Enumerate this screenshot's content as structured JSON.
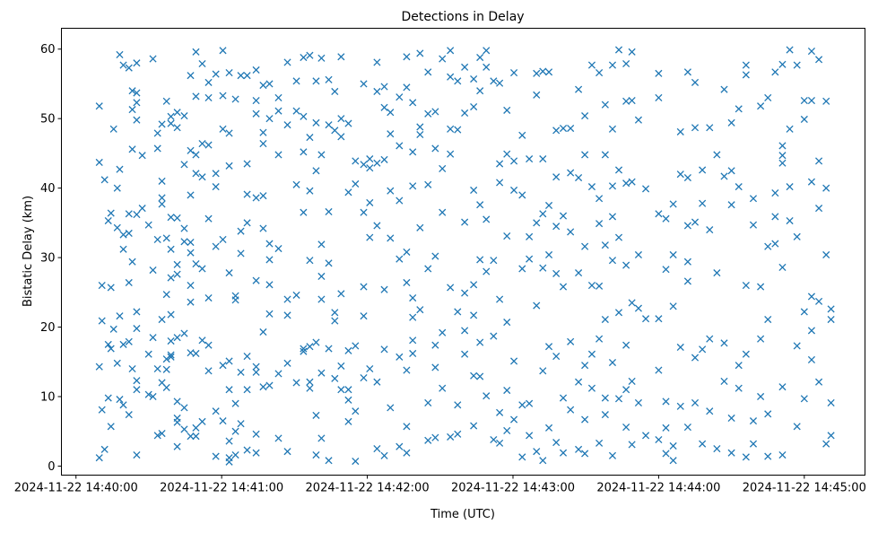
{
  "chart_data": {
    "type": "scatter",
    "title": "Detections in Delay",
    "xlabel": "Time (UTC)",
    "ylabel": "Bistatic Delay (km)",
    "x_origin": "2024-11-22 14:40:00",
    "x_units": "seconds since x_origin",
    "xlim": [
      -6,
      325
    ],
    "ylim": [
      -1.3,
      63
    ],
    "grid": false,
    "marker": "x",
    "color": "#1f77b4",
    "x_ticks": [
      {
        "value": 0,
        "label": "2024-11-22 14:40:00"
      },
      {
        "value": 60,
        "label": "2024-11-22 14:41:00"
      },
      {
        "value": 120,
        "label": "2024-11-22 14:42:00"
      },
      {
        "value": 180,
        "label": "2024-11-22 14:43:00"
      },
      {
        "value": 240,
        "label": "2024-11-22 14:44:00"
      },
      {
        "value": 300,
        "label": "2024-11-22 14:45:00"
      }
    ],
    "y_ticks": [
      {
        "value": 0,
        "label": "0"
      },
      {
        "value": 10,
        "label": "10"
      },
      {
        "value": 20,
        "label": "20"
      },
      {
        "value": 30,
        "label": "30"
      },
      {
        "value": 40,
        "label": "40"
      },
      {
        "value": 50,
        "label": "50"
      },
      {
        "value": 60,
        "label": "60"
      }
    ],
    "columns": [
      [
        9.6,
        [
          51.8,
          43.7,
          14.3,
          1.2
        ]
      ],
      [
        10.7,
        [
          26,
          20.9,
          8.1
        ]
      ],
      [
        11.8,
        [
          41.2,
          2.4
        ]
      ],
      [
        13.3,
        [
          17.5,
          9.8,
          35.3
        ]
      ],
      [
        14.4,
        [
          25.7,
          36.4,
          16.9,
          5.7
        ]
      ],
      [
        15.5,
        [
          48.5,
          19.7
        ]
      ],
      [
        17,
        [
          40,
          14.8,
          34.3
        ]
      ],
      [
        18,
        [
          59.2,
          42.7,
          21.6,
          9.6
        ]
      ],
      [
        19.5,
        [
          57.7,
          31.2,
          33.3,
          17.5,
          8.8
        ]
      ],
      [
        21.8,
        [
          57.3,
          36.3,
          33.5,
          17.9,
          7.4,
          26.4
        ]
      ],
      [
        23.2,
        [
          54,
          51.3,
          45.6,
          29.4,
          14
        ]
      ],
      [
        25,
        [
          58,
          53.7,
          52.3,
          49.8,
          36.2,
          22.2,
          12.3,
          11,
          19.8,
          1.6
        ]
      ],
      [
        27.3,
        [
          44.7,
          37.1
        ]
      ],
      [
        29.9,
        [
          34.7,
          16.1,
          10.3
        ]
      ],
      [
        31.7,
        [
          58.6,
          18.5,
          10,
          28.2
        ]
      ],
      [
        33.6,
        [
          47.9,
          45.7,
          32.6,
          14,
          4.4
        ]
      ],
      [
        35.4,
        [
          49.2,
          38.6,
          37.7,
          21.1,
          12,
          4.7,
          41
        ]
      ],
      [
        37.3,
        [
          52.5,
          32.8,
          15.4,
          13.9,
          24.7,
          11.3
        ]
      ],
      [
        39.1,
        [
          49.3,
          35.8,
          31.2,
          16,
          15.7,
          50.3,
          27.1,
          21.8,
          18
        ]
      ],
      [
        41.7,
        [
          50.9,
          48.7,
          35.7,
          29,
          27.6,
          18.5,
          9.3,
          6.9,
          6.3,
          2.8
        ]
      ],
      [
        44.6,
        [
          50.4,
          43.4,
          34.2,
          32.3,
          19.1,
          8.4,
          5.3
        ]
      ],
      [
        47.2,
        [
          56.2,
          45.4,
          39,
          32.2,
          30.7,
          16.3,
          4.3,
          26,
          23.6
        ]
      ],
      [
        49.4,
        [
          59.6,
          53.2,
          44.8,
          42.1,
          29.1,
          5.5,
          4.3,
          16.2
        ]
      ],
      [
        52,
        [
          57.9,
          46.4,
          41.6,
          28.4,
          18.1,
          6.4
        ]
      ],
      [
        54.6,
        [
          55.2,
          53,
          46.2,
          35.6,
          24.2,
          17.4,
          13.7
        ]
      ],
      [
        57.6,
        [
          56.4,
          42.1,
          40.2,
          7.9,
          1.4,
          31.6
        ]
      ],
      [
        60.5,
        [
          53.3,
          48.5,
          32.6,
          14.5,
          6.5,
          59.8
        ]
      ],
      [
        63.1,
        [
          56.6,
          47.9,
          43.2,
          27.8,
          15.1,
          11,
          3.6,
          1.2,
          0.6
        ]
      ],
      [
        65.7,
        [
          52.8,
          24.5,
          23.9,
          9,
          5,
          1.6
        ]
      ],
      [
        67.9,
        [
          56.2,
          33.8,
          13.5,
          6.1,
          30.6
        ]
      ],
      [
        70.5,
        [
          56.2,
          43.5,
          39.1,
          11,
          2.3,
          15.8,
          35
        ]
      ],
      [
        74.2,
        [
          57,
          52.6,
          50.7,
          14.3,
          13.5,
          4.6,
          1.9,
          38.6,
          26.7
        ]
      ],
      [
        77.1,
        [
          54.8,
          48,
          46.4,
          34.2,
          19.3,
          38.9,
          11.4
        ]
      ],
      [
        79.7,
        [
          55,
          50,
          32,
          29.7,
          26.1,
          21.9,
          11.6
        ]
      ],
      [
        83.4,
        [
          53,
          51.1,
          44.8,
          31.3,
          13.3,
          4
        ]
      ],
      [
        87.1,
        [
          58.1,
          49.1,
          24,
          21.7,
          2.1,
          14.8
        ]
      ],
      [
        90.8,
        [
          55.4,
          51.1,
          40.5,
          24.6,
          12
        ]
      ],
      [
        93.7,
        [
          58.8,
          50.3,
          45.2,
          36.5,
          16.9,
          16.5
        ]
      ],
      [
        96.3,
        [
          59.1,
          47.3,
          39.6,
          29.6,
          12.1,
          11.2,
          17.2
        ]
      ],
      [
        98.9,
        [
          55.4,
          42.5,
          17.8,
          7.3,
          1.6,
          49.4
        ]
      ],
      [
        101.1,
        [
          58.7,
          44.8,
          27.3,
          24,
          13.4,
          4,
          31.9
        ]
      ],
      [
        104.1,
        [
          55.6,
          49.1,
          36.6,
          29.2,
          16.9,
          0.8
        ]
      ],
      [
        106.6,
        [
          53.9,
          48.3,
          22.1,
          12.6,
          20.9
        ]
      ],
      [
        109.2,
        [
          58.9,
          50,
          47.4,
          14.4,
          24.8,
          11
        ]
      ],
      [
        112.2,
        [
          49.3,
          39.4,
          11,
          9.5,
          6.4,
          16.6
        ]
      ],
      [
        115.1,
        [
          43.9,
          40.6,
          17.3,
          7.9,
          0.7
        ]
      ],
      [
        118.5,
        [
          55,
          43.4,
          36.5,
          25.8,
          21.6,
          12.7
        ]
      ],
      [
        121,
        [
          44.2,
          42.9,
          37.9,
          32.9,
          14
        ]
      ],
      [
        124,
        [
          58.1,
          53.9,
          43.6,
          2.5,
          12.1,
          34.6
        ]
      ],
      [
        127,
        [
          54.6,
          51.6,
          44.1,
          25.4,
          16.8,
          1.5
        ]
      ],
      [
        129.5,
        [
          50.9,
          47.8,
          39.6,
          32.8,
          8.4
        ]
      ],
      [
        133.2,
        [
          53.1,
          46.1,
          38.2,
          29.8,
          15.7,
          2.8
        ]
      ],
      [
        136.2,
        [
          58.9,
          54.5,
          30.8,
          26.4,
          13.8,
          5.7,
          1.9
        ]
      ],
      [
        138.7,
        [
          52.3,
          45.2,
          40.3,
          21.4,
          24.2,
          18.1,
          16.2
        ]
      ],
      [
        141.7,
        [
          59.4,
          48.8,
          47.7,
          34.3,
          22.5
        ]
      ],
      [
        145,
        [
          56.7,
          50.7,
          40.5,
          28.4,
          9.1,
          3.7
        ]
      ],
      [
        148,
        [
          51,
          45.7,
          30.2,
          17.4,
          14.2,
          4.1
        ]
      ],
      [
        150.9,
        [
          58.6,
          42.8,
          36.5,
          19.2,
          11.2
        ]
      ],
      [
        154.2,
        [
          59.8,
          56,
          48.5,
          25.7,
          4.2,
          44.9
        ]
      ],
      [
        157.2,
        [
          55.4,
          48.4,
          22.2,
          8.8,
          4.6
        ]
      ],
      [
        160.1,
        [
          57.4,
          50.8,
          35.1,
          19.5,
          16.1,
          24.9
        ]
      ],
      [
        163.8,
        [
          55.7,
          51.7,
          39.7,
          26.1,
          13,
          5.8,
          21.7
        ]
      ],
      [
        166.4,
        [
          58.8,
          54,
          37.6,
          29.7,
          17.8,
          12.9
        ]
      ],
      [
        169,
        [
          59.8,
          57.4,
          35.5,
          28,
          10.1
        ]
      ],
      [
        172,
        [
          55.4,
          29.6,
          18.7,
          3.8
        ]
      ],
      [
        174.5,
        [
          55.1,
          43.5,
          40.8,
          24,
          7.7,
          3.3
        ]
      ],
      [
        177.5,
        [
          51.2,
          44.9,
          33.1,
          20.7,
          10.9,
          5.1
        ]
      ],
      [
        180.4,
        [
          56.6,
          43.9,
          39.7,
          15.1,
          6.7
        ]
      ],
      [
        183.8,
        [
          47.6,
          39,
          28.4,
          8.8,
          1.3
        ]
      ],
      [
        186.7,
        [
          44.2,
          33,
          29.8,
          4.4,
          9
        ]
      ],
      [
        189.7,
        [
          56.5,
          53.4,
          35,
          23.1,
          2.1
        ]
      ],
      [
        192.3,
        [
          56.8,
          44.2,
          36.3,
          28.5,
          13.7,
          0.8
        ]
      ],
      [
        194.8,
        [
          56.7,
          37.5,
          30.4,
          17.2,
          5.5
        ]
      ],
      [
        197.8,
        [
          48.3,
          41.6,
          27.7,
          15.8,
          3.4,
          34.5
        ]
      ],
      [
        200.7,
        [
          48.6,
          36,
          25.8,
          9.8,
          1.9
        ]
      ],
      [
        203.7,
        [
          48.6,
          42.2,
          33.7,
          17.9,
          8.1
        ]
      ],
      [
        207,
        [
          54.2,
          41.5,
          27.8,
          12.1,
          2.4
        ]
      ],
      [
        209.6,
        [
          50.4,
          44.8,
          31.6,
          14.5,
          6.7,
          1.8
        ]
      ],
      [
        212.5,
        [
          57.7,
          40.2,
          26,
          16.1,
          11.2
        ]
      ],
      [
        215.5,
        [
          56.6,
          38.5,
          34.9,
          18.3,
          3.3,
          25.9
        ]
      ],
      [
        218,
        [
          52,
          44.8,
          31.8,
          21.1,
          9.8,
          7.4
        ]
      ],
      [
        221,
        [
          57.7,
          48.5,
          40.3,
          35.9,
          29.6,
          14.9,
          1.5
        ]
      ],
      [
        223.6,
        [
          59.9,
          42.6,
          32.9,
          22.1,
          9.7
        ]
      ],
      [
        226.6,
        [
          57.9,
          52.5,
          40.7,
          28.9,
          11,
          5.6,
          17.4
        ]
      ],
      [
        229,
        [
          59.6,
          52.6,
          40.9,
          23.5,
          12.2,
          3.1
        ]
      ],
      [
        231.7,
        [
          49.8,
          30.4,
          22.7,
          9.1
        ]
      ],
      [
        234.7,
        [
          39.9,
          21.2,
          4.4
        ]
      ],
      [
        240,
        [
          56.5,
          53,
          36.3,
          21.2,
          13.8,
          3.8
        ]
      ],
      [
        243,
        [
          35.6,
          28.3,
          9.3,
          5.5,
          1.8
        ]
      ],
      [
        246,
        [
          37.7,
          30.4,
          23,
          2.9,
          0.8
        ]
      ],
      [
        249,
        [
          48.1,
          42,
          17.1,
          8.6
        ]
      ],
      [
        252,
        [
          56.7,
          41.5,
          34.6,
          29.4,
          26.6,
          5.6
        ]
      ],
      [
        255,
        [
          55.2,
          48.7,
          35.1,
          15.6,
          9.1
        ]
      ],
      [
        258,
        [
          42.6,
          37.8,
          16.8,
          3.2
        ]
      ],
      [
        261,
        [
          48.7,
          34,
          18.3,
          7.9
        ]
      ],
      [
        264,
        [
          44.8,
          27.8,
          2.5
        ]
      ],
      [
        267,
        [
          54.2,
          41.7,
          12.2,
          17.7
        ]
      ],
      [
        270,
        [
          49.4,
          42.5,
          37.6,
          6.9,
          1.9
        ]
      ],
      [
        273,
        [
          51.4,
          40.2,
          14.5,
          11.2
        ]
      ],
      [
        276,
        [
          57.7,
          56.3,
          26,
          16.1,
          1.3
        ]
      ],
      [
        279,
        [
          38.5,
          34.7,
          6.5,
          3.2
        ]
      ],
      [
        282,
        [
          51.8,
          25.8,
          18.3,
          10
        ]
      ],
      [
        285,
        [
          53,
          31.6,
          21.1,
          7.5,
          1.4
        ]
      ],
      [
        288,
        [
          56.7,
          39.3,
          35.9,
          32
        ]
      ],
      [
        291,
        [
          57.8,
          44.7,
          43.6,
          46.1,
          28.6,
          11.4,
          1.6
        ]
      ],
      [
        294,
        [
          59.9,
          48.5,
          40.2,
          35.3
        ]
      ],
      [
        297,
        [
          57.7,
          33,
          17.3,
          5.7
        ]
      ],
      [
        300,
        [
          52.6,
          49.9,
          22.2,
          9.7
        ]
      ],
      [
        303,
        [
          59.7,
          52.6,
          40.9,
          24.4,
          19.5,
          15.3
        ]
      ],
      [
        306,
        [
          58.5,
          43.9,
          37.1,
          12.1,
          23.7
        ]
      ],
      [
        309,
        [
          52.5,
          40,
          30.4,
          3.2
        ]
      ],
      [
        311,
        [
          22.6,
          21.1,
          9.1,
          4.4
        ]
      ]
    ]
  }
}
